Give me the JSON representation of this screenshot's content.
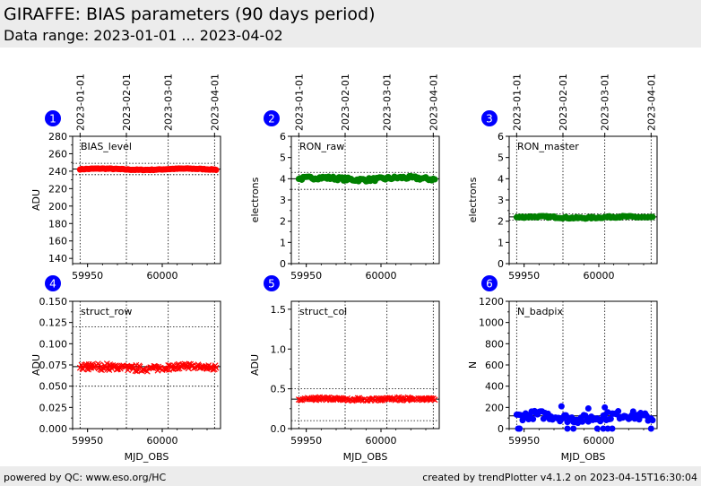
{
  "header": {
    "title": "GIRAFFE: BIAS parameters (90 days period)",
    "subtitle": "Data range: 2023-01-01 ... 2023-04-02"
  },
  "footer": {
    "left": "powered by QC: www.eso.org/HC",
    "right": "created by trendPlotter v4.1.2 on 2023-04-15T16:30:04"
  },
  "date_ticks": [
    {
      "label": "2023-01-01",
      "mjd": 59945
    },
    {
      "label": "2023-02-01",
      "mjd": 59976
    },
    {
      "label": "2023-03-01",
      "mjd": 60004
    },
    {
      "label": "2023-04-01",
      "mjd": 60035
    }
  ],
  "colors": {
    "red": "#ff0000",
    "green": "#008000",
    "blue": "#0000ff",
    "badge": "#0000ff"
  },
  "chart_data": [
    {
      "id": 1,
      "type": "scatter",
      "label": "BIAS_level",
      "ylabel": "ADU",
      "xlabel": "",
      "xlim": [
        59940,
        60039
      ],
      "ylim": [
        134,
        280
      ],
      "yticks": [
        140,
        160,
        180,
        200,
        220,
        240,
        260,
        280
      ],
      "xticks": [
        59950,
        60000
      ],
      "show_xticklabels": true,
      "ref_lines": [
        242.5
      ],
      "limit_lines": [
        236,
        249
      ],
      "marker": "circle",
      "color": "red",
      "base": 242.2,
      "amp": 0.7,
      "jitter": 0.4,
      "outliers": []
    },
    {
      "id": 2,
      "type": "scatter",
      "label": "RON_raw",
      "ylabel": "electrons",
      "xlabel": "",
      "xlim": [
        59940,
        60039
      ],
      "ylim": [
        0,
        6
      ],
      "yticks": [
        0.0,
        1.0,
        2.0,
        3.0,
        4.0,
        5.0,
        6.0
      ],
      "xticks": [
        59950,
        60000
      ],
      "show_xticklabels": true,
      "ref_lines": [
        4.0
      ],
      "limit_lines": [
        3.5,
        4.3
      ],
      "marker": "circle",
      "color": "green",
      "base": 4.0,
      "amp": 0.05,
      "jitter": 0.08,
      "outliers": []
    },
    {
      "id": 3,
      "type": "scatter",
      "label": "RON_master",
      "ylabel": "electrons",
      "xlabel": "",
      "xlim": [
        59940,
        60039
      ],
      "ylim": [
        0,
        6
      ],
      "yticks": [
        0.0,
        1.0,
        2.0,
        3.0,
        4.0,
        5.0,
        6.0
      ],
      "xticks": [
        59950,
        60000
      ],
      "show_xticklabels": true,
      "ref_lines": [
        2.2
      ],
      "limit_lines": [
        2.05,
        2.35
      ],
      "marker": "circle",
      "color": "green",
      "base": 2.18,
      "amp": 0.03,
      "jitter": 0.04,
      "outliers": []
    },
    {
      "id": 4,
      "type": "scatter",
      "label": "struct_row",
      "ylabel": "ADU",
      "xlabel": "MJD_OBS",
      "xlim": [
        59940,
        60039
      ],
      "ylim": [
        0,
        0.15
      ],
      "yticks": [
        0.0,
        0.025,
        0.05,
        0.075,
        0.1,
        0.125,
        0.15
      ],
      "xticks": [
        59950,
        60000
      ],
      "show_xticklabels": true,
      "ref_lines": [
        0.073
      ],
      "limit_lines": [
        0.05,
        0.12
      ],
      "marker": "x",
      "color": "red",
      "base": 0.072,
      "amp": 0.002,
      "jitter": 0.003,
      "outliers": []
    },
    {
      "id": 5,
      "type": "scatter",
      "label": "struct_col",
      "ylabel": "ADU",
      "xlabel": "MJD_OBS",
      "xlim": [
        59940,
        60039
      ],
      "ylim": [
        0,
        1.6
      ],
      "yticks": [
        0.0,
        0.5,
        1.0,
        1.5
      ],
      "xticks": [
        59950,
        60000
      ],
      "show_xticklabels": true,
      "ref_lines": [
        0.37
      ],
      "limit_lines": [
        0.1,
        0.5
      ],
      "marker": "x",
      "color": "red",
      "base": 0.37,
      "amp": 0.01,
      "jitter": 0.015,
      "outliers": []
    },
    {
      "id": 6,
      "type": "scatter",
      "label": "N_badpix",
      "ylabel": "N",
      "xlabel": "MJD_OBS",
      "xlim": [
        59940,
        60039
      ],
      "ylim": [
        0,
        1200
      ],
      "yticks": [
        0,
        200,
        400,
        600,
        800,
        1000,
        1200
      ],
      "xticks": [
        59950,
        60000
      ],
      "show_xticklabels": true,
      "ref_lines": [
        120
      ],
      "limit_lines": [],
      "marker": "circle",
      "color": "blue",
      "base": 110,
      "amp": 20,
      "jitter": 40,
      "outliers": [
        [
          59946,
          0
        ],
        [
          59947,
          0
        ],
        [
          59979,
          0
        ],
        [
          59983,
          0
        ],
        [
          59999,
          0
        ],
        [
          60003,
          0
        ],
        [
          60006,
          0
        ],
        [
          60009,
          0
        ],
        [
          60035,
          0
        ],
        [
          59975,
          210
        ],
        [
          59993,
          190
        ],
        [
          60004,
          200
        ]
      ]
    }
  ]
}
